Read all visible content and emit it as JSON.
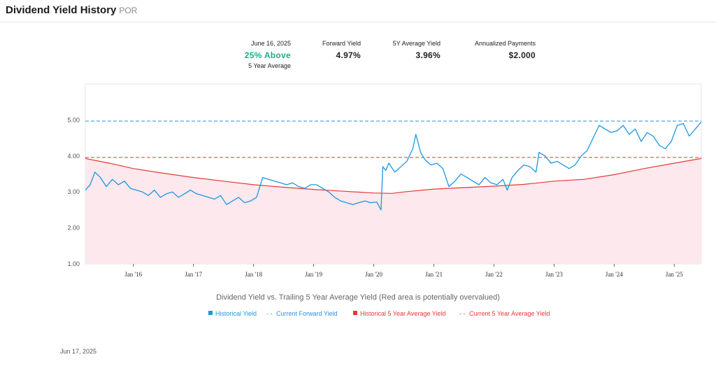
{
  "header": {
    "title": "Dividend Yield History",
    "ticker": "POR"
  },
  "stats": {
    "date": "June 16, 2025",
    "relative": "25% Above",
    "relative_sub": "5 Year Average",
    "forward_label": "Forward Yield",
    "forward_value": "4.97%",
    "avg_label": "5Y Average Yield",
    "avg_value": "3.96%",
    "payments_label": "Annualized Payments",
    "payments_value": "$2.000"
  },
  "colors": {
    "historical": "#1a98e0",
    "forward_line": "#2b8ee6",
    "avg_line": "#e53935",
    "avg_area": "#fde8ee",
    "positive": "#1fae8a"
  },
  "chart_data": {
    "type": "line",
    "title": "",
    "caption": "Dividend Yield vs. Trailing 5 Year Average Yield (Red area is potentially overvalued)",
    "x_range": [
      "2015-03",
      "2025-06"
    ],
    "ylim": [
      1.0,
      6.0
    ],
    "y_ticks": [
      "1.00",
      "2.00",
      "3.00",
      "4.00",
      "5.00"
    ],
    "y_tick_values": [
      1,
      2,
      3,
      4,
      5
    ],
    "x_ticks": [
      "Jan '16",
      "Jan '17",
      "Jan '18",
      "Jan '19",
      "Jan '20",
      "Jan '21",
      "Jan '22",
      "Jan '23",
      "Jan '24",
      "Jan '25"
    ],
    "x_tick_values": [
      2016.0,
      2017.0,
      2018.0,
      2019.0,
      2020.0,
      2021.0,
      2022.0,
      2023.0,
      2024.0,
      2025.0
    ],
    "current_forward_yield": 4.97,
    "current_5y_avg": 3.96,
    "legend_position": "bottom",
    "legend": [
      "Historical Yield",
      "Current Forward Yield",
      "Historical 5 Year Average Yield",
      "Current 5 Year Average Yield"
    ],
    "series": [
      {
        "name": "Historical Yield",
        "x": [
          2015.2,
          2015.28,
          2015.36,
          2015.45,
          2015.55,
          2015.65,
          2015.75,
          2015.85,
          2015.95,
          2016.05,
          2016.15,
          2016.25,
          2016.35,
          2016.45,
          2016.55,
          2016.65,
          2016.75,
          2016.85,
          2016.95,
          2017.05,
          2017.15,
          2017.25,
          2017.35,
          2017.45,
          2017.55,
          2017.65,
          2017.75,
          2017.85,
          2017.95,
          2018.05,
          2018.15,
          2018.25,
          2018.35,
          2018.45,
          2018.55,
          2018.65,
          2018.75,
          2018.85,
          2018.95,
          2019.05,
          2019.15,
          2019.25,
          2019.35,
          2019.45,
          2019.55,
          2019.65,
          2019.75,
          2019.85,
          2019.95,
          2020.05,
          2020.12,
          2020.15,
          2020.2,
          2020.25,
          2020.35,
          2020.45,
          2020.55,
          2020.65,
          2020.7,
          2020.78,
          2020.85,
          2020.95,
          2021.05,
          2021.15,
          2021.25,
          2021.35,
          2021.45,
          2021.55,
          2021.65,
          2021.75,
          2021.85,
          2021.95,
          2022.05,
          2022.15,
          2022.22,
          2022.3,
          2022.4,
          2022.5,
          2022.6,
          2022.7,
          2022.75,
          2022.85,
          2022.95,
          2023.05,
          2023.15,
          2023.25,
          2023.35,
          2023.45,
          2023.55,
          2023.65,
          2023.75,
          2023.85,
          2023.95,
          2024.05,
          2024.15,
          2024.25,
          2024.35,
          2024.45,
          2024.55,
          2024.65,
          2024.75,
          2024.85,
          2024.95,
          2025.05,
          2025.15,
          2025.25,
          2025.35,
          2025.45
        ],
        "values": [
          3.05,
          3.2,
          3.55,
          3.4,
          3.15,
          3.35,
          3.2,
          3.3,
          3.1,
          3.05,
          3.0,
          2.9,
          3.05,
          2.85,
          2.95,
          3.0,
          2.85,
          2.95,
          3.05,
          2.95,
          2.9,
          2.85,
          2.8,
          2.9,
          2.65,
          2.75,
          2.85,
          2.7,
          2.75,
          2.85,
          3.4,
          3.35,
          3.3,
          3.25,
          3.2,
          3.25,
          3.15,
          3.1,
          3.2,
          3.2,
          3.1,
          3.0,
          2.85,
          2.75,
          2.7,
          2.65,
          2.7,
          2.75,
          2.7,
          2.72,
          2.5,
          3.7,
          3.6,
          3.8,
          3.55,
          3.7,
          3.85,
          4.2,
          4.6,
          4.1,
          3.9,
          3.75,
          3.8,
          3.65,
          3.15,
          3.3,
          3.5,
          3.4,
          3.3,
          3.2,
          3.4,
          3.25,
          3.2,
          3.35,
          3.05,
          3.4,
          3.6,
          3.75,
          3.7,
          3.55,
          4.1,
          4.0,
          3.8,
          3.85,
          3.75,
          3.65,
          3.75,
          4.0,
          4.15,
          4.5,
          4.85,
          4.75,
          4.65,
          4.7,
          4.85,
          4.6,
          4.75,
          4.4,
          4.65,
          4.55,
          4.3,
          4.2,
          4.4,
          4.85,
          4.9,
          4.55,
          4.75,
          4.95
        ]
      },
      {
        "name": "Historical 5 Year Average Yield",
        "x": [
          2015.2,
          2015.6,
          2016.0,
          2016.5,
          2017.0,
          2017.5,
          2018.0,
          2018.5,
          2019.0,
          2019.5,
          2020.0,
          2020.3,
          2020.5,
          2021.0,
          2021.5,
          2022.0,
          2022.5,
          2023.0,
          2023.5,
          2024.0,
          2024.5,
          2025.0,
          2025.45
        ],
        "values": [
          3.93,
          3.8,
          3.65,
          3.52,
          3.4,
          3.3,
          3.2,
          3.13,
          3.07,
          3.02,
          2.97,
          2.96,
          3.0,
          3.08,
          3.12,
          3.16,
          3.21,
          3.3,
          3.35,
          3.48,
          3.65,
          3.8,
          3.93
        ]
      }
    ]
  },
  "footer": {
    "date": "Jun 17, 2025"
  }
}
